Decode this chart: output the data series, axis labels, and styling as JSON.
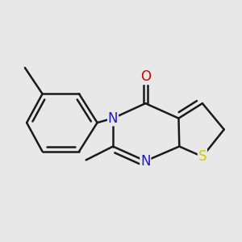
{
  "background_color": "#e8e8e8",
  "bond_color": "#1a1a1a",
  "bond_width": 1.8,
  "atom_colors": {
    "N": "#1a1acc",
    "O": "#cc0000",
    "S": "#cccc00",
    "C": "#1a1a1a"
  },
  "font_size": 12,
  "fig_size": [
    3.0,
    3.0
  ],
  "dpi": 100
}
